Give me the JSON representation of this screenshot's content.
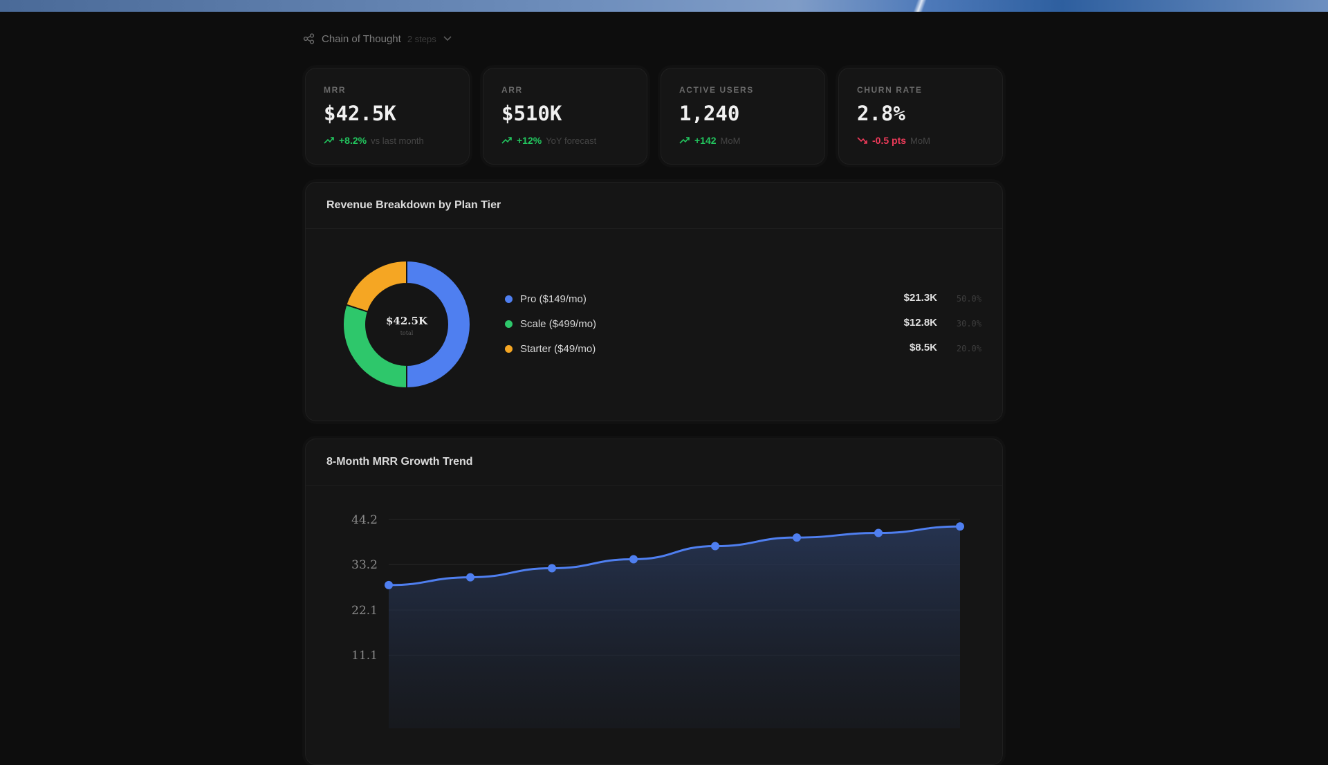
{
  "chain_of_thought": {
    "label": "Chain of Thought",
    "steps": "2 steps"
  },
  "kpis": [
    {
      "label": "MRR",
      "value": "$42.5K",
      "direction": "up",
      "delta": "+8.2%",
      "note": "vs last month"
    },
    {
      "label": "ARR",
      "value": "$510K",
      "direction": "up",
      "delta": "+12%",
      "note": "YoY forecast"
    },
    {
      "label": "ACTIVE USERS",
      "value": "1,240",
      "direction": "up",
      "delta": "+142",
      "note": "MoM"
    },
    {
      "label": "CHURN RATE",
      "value": "2.8%",
      "direction": "down",
      "delta": "-0.5 pts",
      "note": "MoM"
    }
  ],
  "colors": {
    "blue": "#4f7ff0",
    "green": "#2ec76b",
    "orange": "#f5a623",
    "up": "#22c55e",
    "down": "#ef3b5a"
  },
  "revenue_breakdown": {
    "title": "Revenue Breakdown by Plan Tier",
    "center_value": "$42.5K",
    "center_label": "total",
    "items": [
      {
        "name": "Pro ($149/mo)",
        "value": "$21.3K",
        "pct": "50.0%",
        "color": "#4f7ff0"
      },
      {
        "name": "Scale ($499/mo)",
        "value": "$12.8K",
        "pct": "30.0%",
        "color": "#2ec76b"
      },
      {
        "name": "Starter ($49/mo)",
        "value": "$8.5K",
        "pct": "20.0%",
        "color": "#f5a623"
      }
    ]
  },
  "mrr_trend": {
    "title": "8-Month MRR Growth Trend"
  },
  "chart_data": [
    {
      "type": "pie",
      "labels": [
        "Pro ($149/mo)",
        "Scale ($499/mo)",
        "Starter ($49/mo)"
      ],
      "values": [
        50.0,
        30.0,
        20.0
      ]
    },
    {
      "type": "area",
      "title": "8-Month MRR Growth Trend",
      "x": [
        1,
        2,
        3,
        4,
        5,
        6,
        7,
        8
      ],
      "y_ticks": [
        "44.2",
        "33.2",
        "22.1",
        "11.1"
      ],
      "ylim": [
        0,
        44.2
      ],
      "series": [
        {
          "values": [
            28.2,
            30.1,
            32.3,
            34.5,
            37.7,
            39.8,
            40.9,
            42.5
          ]
        }
      ],
      "grid": true
    }
  ]
}
